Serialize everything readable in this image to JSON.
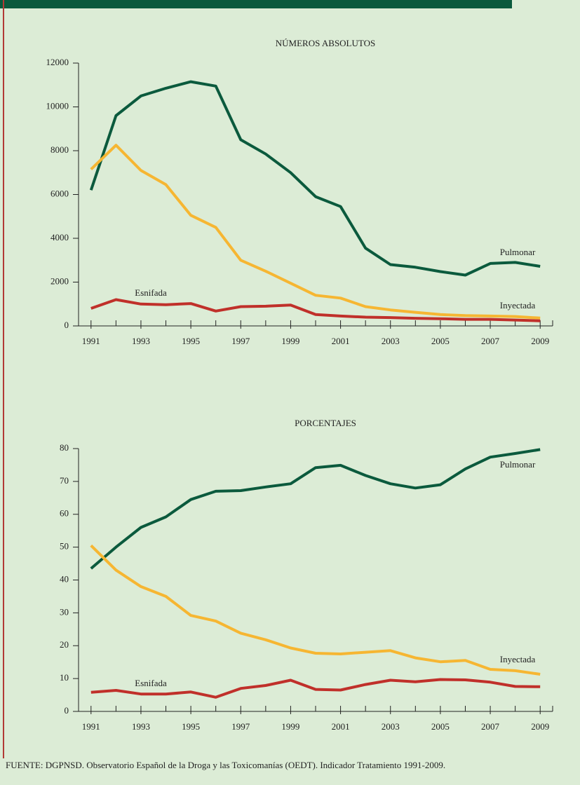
{
  "chart_data": [
    {
      "type": "line",
      "title": "NÚMEROS ABSOLUTOS",
      "x": [
        1991,
        1992,
        1993,
        1994,
        1995,
        1996,
        1997,
        1998,
        1999,
        2000,
        2001,
        2002,
        2003,
        2004,
        2005,
        2006,
        2007,
        2008,
        2009
      ],
      "xlim": [
        1990.5,
        2009.5
      ],
      "xticks": [
        1991,
        1993,
        1995,
        1997,
        1999,
        2001,
        2003,
        2005,
        2007,
        2009
      ],
      "ylim": [
        0,
        12000
      ],
      "yticks": [
        0,
        2000,
        4000,
        6000,
        8000,
        10000,
        12000
      ],
      "series": [
        {
          "name": "Pulmonar",
          "color": "#0b5a3d",
          "values": [
            6200,
            9600,
            10500,
            10850,
            11150,
            10950,
            8500,
            7850,
            7000,
            5900,
            5450,
            3550,
            2800,
            2680,
            2480,
            2320,
            2850,
            2900,
            2720
          ]
        },
        {
          "name": "Inyectada",
          "color": "#f6b632",
          "values": [
            7150,
            8250,
            7100,
            6450,
            5050,
            4500,
            3000,
            2500,
            1950,
            1400,
            1270,
            880,
            730,
            620,
            520,
            470,
            450,
            430,
            360
          ]
        },
        {
          "name": "Esnifada",
          "color": "#c0302a",
          "values": [
            800,
            1200,
            1000,
            970,
            1020,
            680,
            880,
            900,
            950,
            520,
            450,
            400,
            380,
            350,
            330,
            300,
            300,
            270,
            230
          ]
        }
      ]
    },
    {
      "type": "line",
      "title": "PORCENTAJES",
      "x": [
        1991,
        1992,
        1993,
        1994,
        1995,
        1996,
        1997,
        1998,
        1999,
        2000,
        2001,
        2002,
        2003,
        2004,
        2005,
        2006,
        2007,
        2008,
        2009
      ],
      "xlim": [
        1990.5,
        2009.5
      ],
      "xticks": [
        1991,
        1993,
        1995,
        1997,
        1999,
        2001,
        2003,
        2005,
        2007,
        2009
      ],
      "ylim": [
        0,
        80
      ],
      "yticks": [
        0,
        10,
        20,
        30,
        40,
        50,
        60,
        70,
        80
      ],
      "series": [
        {
          "name": "Pulmonar",
          "color": "#0b5a3d",
          "values": [
            43.5,
            50,
            56,
            59.2,
            64.5,
            67,
            67.2,
            68.3,
            69.3,
            74.2,
            74.9,
            71.8,
            69.3,
            68,
            69,
            73.8,
            77.4,
            78.5,
            79.7
          ]
        },
        {
          "name": "Inyectada",
          "color": "#f6b632",
          "values": [
            50.5,
            43,
            38,
            35,
            29.2,
            27.5,
            23.8,
            21.8,
            19.3,
            17.7,
            17.5,
            18,
            18.5,
            16.3,
            15.1,
            15.5,
            12.8,
            12.4,
            11.3
          ]
        },
        {
          "name": "Esnifada",
          "color": "#c0302a",
          "values": [
            5.8,
            6.4,
            5.3,
            5.3,
            5.9,
            4.3,
            7,
            7.9,
            9.5,
            6.7,
            6.5,
            8.2,
            9.5,
            9,
            9.7,
            9.6,
            8.9,
            7.6,
            7.5
          ]
        }
      ]
    }
  ],
  "source": "FUENTE: DGPNSD. Observatorio Español de la Droga y las Toxicomanías (OEDT). Indicador Tratamiento 1991-2009."
}
